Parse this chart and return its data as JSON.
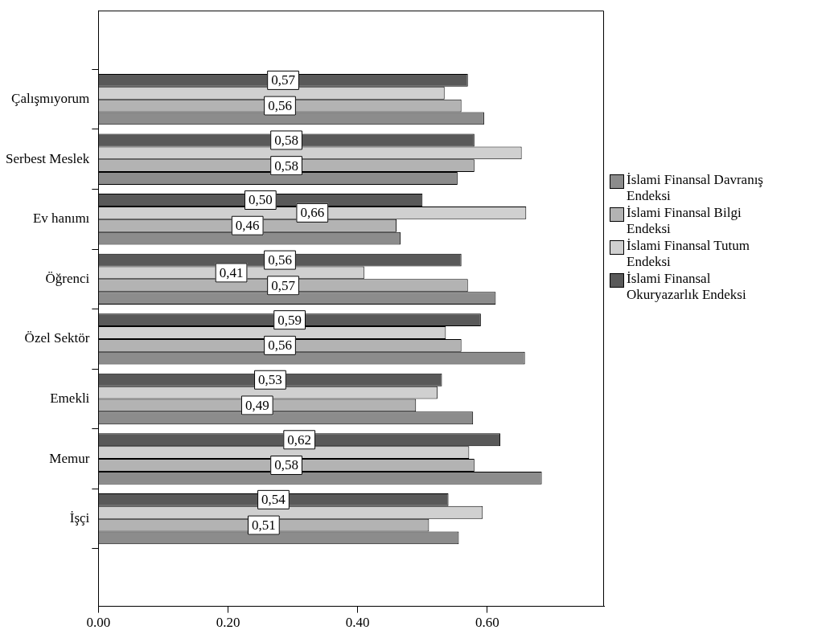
{
  "chart_data": {
    "type": "bar",
    "orientation": "horizontal",
    "categories": [
      "Çalışmıyorum",
      "Serbest Meslek",
      "Ev hanımı",
      "Öğrenci",
      "Özel Sektör",
      "Emekli",
      "Memur",
      "İşçi"
    ],
    "series": [
      {
        "name": "İslami Finansal Davranış Endeksi",
        "color": "#8c8c8c",
        "values": [
          0.595,
          0.554,
          0.466,
          0.613,
          0.658,
          0.578,
          0.684,
          0.556
        ],
        "value_labels": [
          null,
          null,
          null,
          null,
          null,
          null,
          null,
          null
        ]
      },
      {
        "name": "İslami Finansal Bilgi Endeksi",
        "color": "#b3b3b3",
        "values": [
          0.56,
          0.58,
          0.46,
          0.57,
          0.56,
          0.49,
          0.58,
          0.51
        ],
        "value_labels": [
          "0,56",
          "0,58",
          "0,46",
          "0,57",
          "0,56",
          "0,49",
          "0,58",
          "0,51"
        ]
      },
      {
        "name": "İslami Finansal Tutum Endeksi",
        "color": "#d0d0d0",
        "values": [
          0.534,
          0.653,
          0.66,
          0.41,
          0.536,
          0.523,
          0.572,
          0.593
        ],
        "value_labels": [
          null,
          null,
          "0,66",
          "0,41",
          null,
          null,
          null,
          null
        ]
      },
      {
        "name": "İslami Finansal Okuryazarlık Endeksi",
        "color": "#595959",
        "values": [
          0.57,
          0.58,
          0.5,
          0.56,
          0.59,
          0.53,
          0.62,
          0.54
        ],
        "value_labels": [
          "0,57",
          "0,58",
          "0,50",
          "0,56",
          "0,59",
          "0,53",
          "0,62",
          "0,54"
        ]
      }
    ],
    "xlim": [
      0,
      0.78
    ],
    "xticks": [
      {
        "value": 0,
        "label": "0.00"
      },
      {
        "value": 0.2,
        "label": "0.20"
      },
      {
        "value": 0.4,
        "label": "0.40"
      },
      {
        "value": 0.6,
        "label": "0.60"
      }
    ],
    "legend": "right"
  }
}
